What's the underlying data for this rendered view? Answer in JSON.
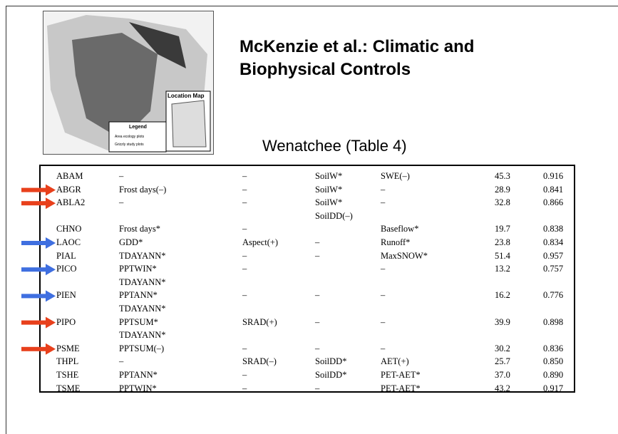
{
  "title": [
    "McKenzie et al.: Climatic and",
    "Biophysical Controls"
  ],
  "subtitle": "Wenatchee (Table 4)",
  "map": {
    "inset_title": "Location Map",
    "legend_title": "Legend",
    "legend_items": [
      "Area ecology plots",
      "Grizzly study plots"
    ]
  },
  "table": {
    "rows": [
      {
        "cells": [
          [
            "ABAM"
          ],
          [
            "–"
          ],
          [
            "–"
          ],
          [
            "SoilW*"
          ],
          [
            "SWE(–)"
          ],
          [
            "45.3"
          ],
          [
            "0.916"
          ]
        ]
      },
      {
        "arrow": "#e8401c",
        "cells": [
          [
            "ABGR"
          ],
          [
            "Frost days(–)"
          ],
          [
            "–"
          ],
          [
            "SoilW*"
          ],
          [
            "–"
          ],
          [
            "28.9"
          ],
          [
            "0.841"
          ]
        ]
      },
      {
        "arrow": "#e8401c",
        "cells": [
          [
            "ABLA2"
          ],
          [
            "–"
          ],
          [
            "–"
          ],
          [
            "SoilW*",
            "SoilDD(–)"
          ],
          [
            "–"
          ],
          [
            "32.8"
          ],
          [
            "0.866"
          ]
        ]
      },
      {
        "cells": [
          [
            "CHNO"
          ],
          [
            "Frost days*"
          ],
          [
            "–"
          ],
          [],
          [
            "Baseflow*"
          ],
          [
            "19.7"
          ],
          [
            "0.838"
          ]
        ]
      },
      {
        "arrow": "#3f6fe0",
        "cells": [
          [
            "LAOC"
          ],
          [
            "GDD*"
          ],
          [
            "Aspect(+)"
          ],
          [
            "–"
          ],
          [
            "Runoff*"
          ],
          [
            "23.8"
          ],
          [
            "0.834"
          ]
        ]
      },
      {
        "cells": [
          [
            "PIAL"
          ],
          [
            "TDAYANN*"
          ],
          [
            "–"
          ],
          [
            "–"
          ],
          [
            "MaxSNOW*"
          ],
          [
            "51.4"
          ],
          [
            "0.957"
          ]
        ]
      },
      {
        "arrow": "#3f6fe0",
        "cells": [
          [
            "PICO"
          ],
          [
            "PPTWIN*",
            "TDAYANN*"
          ],
          [
            "–"
          ],
          [],
          [
            "–"
          ],
          [
            "13.2"
          ],
          [
            "0.757"
          ]
        ]
      },
      {
        "arrow": "#3f6fe0",
        "cells": [
          [
            "PIEN"
          ],
          [
            "PPTANN*",
            "TDAYANN*"
          ],
          [
            "–"
          ],
          [
            "–"
          ],
          [
            "–"
          ],
          [
            "16.2"
          ],
          [
            "0.776"
          ]
        ]
      },
      {
        "arrow": "#e8401c",
        "cells": [
          [
            "PIPO"
          ],
          [
            "PPTSUM*",
            "TDAYANN*"
          ],
          [
            "SRAD(+)"
          ],
          [
            "–"
          ],
          [
            "–"
          ],
          [
            "39.9"
          ],
          [
            "0.898"
          ]
        ]
      },
      {
        "arrow": "#e8401c",
        "cells": [
          [
            "PSME"
          ],
          [
            "PPTSUM(–)"
          ],
          [
            "–"
          ],
          [
            "–"
          ],
          [
            "–"
          ],
          [
            "30.2"
          ],
          [
            "0.836"
          ]
        ]
      },
      {
        "cells": [
          [
            "THPL"
          ],
          [
            "–"
          ],
          [
            "SRAD(–)"
          ],
          [
            "SoilDD*"
          ],
          [
            "AET(+)"
          ],
          [
            "25.7"
          ],
          [
            "0.850"
          ]
        ]
      },
      {
        "cells": [
          [
            "TSHE"
          ],
          [
            "PPTANN*"
          ],
          [
            "–"
          ],
          [
            "SoilDD*"
          ],
          [
            "PET-AET*"
          ],
          [
            "37.0"
          ],
          [
            "0.890"
          ]
        ]
      },
      {
        "cells": [
          [
            "TSME"
          ],
          [
            "PPTWIN*"
          ],
          [
            "–"
          ],
          [
            "–"
          ],
          [
            "PET-AET*"
          ],
          [
            "43.2"
          ],
          [
            "0.917"
          ]
        ]
      }
    ]
  }
}
